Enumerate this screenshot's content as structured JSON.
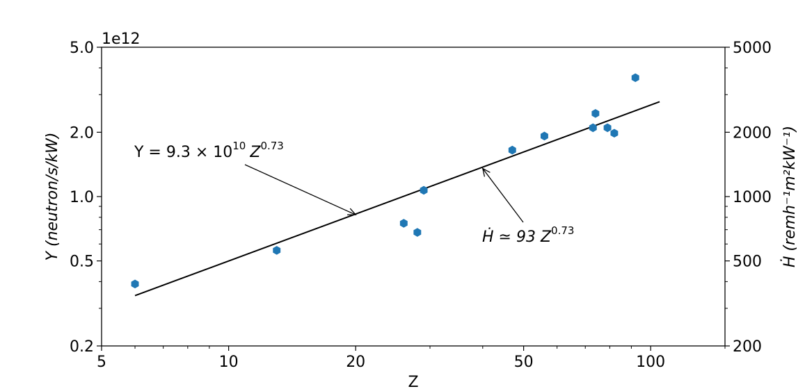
{
  "chart_data": {
    "type": "scatter",
    "xscale": "log",
    "yscale": "log",
    "xlim": [
      5,
      150
    ],
    "ylim": [
      0.2,
      5.0
    ],
    "y_offset_text": "1e12",
    "xlabel": "Z",
    "ylabel_left": "Y (neutron/s/kW)",
    "ylabel_right": "Ḣ (remh⁻¹m²kW⁻¹)",
    "x_ticks": [
      5,
      10,
      20,
      50,
      100
    ],
    "x_tick_labels": [
      "5",
      "10",
      "20",
      "50",
      "100"
    ],
    "y_ticks": [
      0.2,
      0.5,
      1.0,
      2.0,
      5.0
    ],
    "y_tick_labels": [
      "0.2",
      "0.5",
      "1.0",
      "2.0",
      "5.0"
    ],
    "right_ticks": [
      200,
      500,
      1000,
      2000,
      5000
    ],
    "right_tick_labels": [
      "200",
      "500",
      "1000",
      "2000",
      "5000"
    ],
    "marker_color": "#1f77b4",
    "line_color": "#000000",
    "points": {
      "x": [
        6,
        13,
        26,
        28,
        29,
        47,
        56,
        73,
        74,
        79,
        82,
        92
      ],
      "y": [
        0.39,
        0.56,
        0.75,
        0.68,
        1.07,
        1.65,
        1.92,
        2.1,
        2.45,
        2.1,
        1.98,
        3.6
      ]
    },
    "fit": {
      "coefficient": 0.093,
      "exponent": 0.73,
      "x_range": [
        6,
        105
      ]
    },
    "annotations": [
      {
        "id": "yield",
        "text_main": "Y = 9.3 × 10",
        "text_sup": "10",
        "text_tail": "Z",
        "text_tail_sup": "0.73",
        "arrow_to_x": 20
      },
      {
        "id": "dose",
        "text_main": "Ḣ ≃ 93 ",
        "text_tail": "Z",
        "text_tail_sup": "0.73",
        "arrow_to_x": 40
      }
    ]
  }
}
